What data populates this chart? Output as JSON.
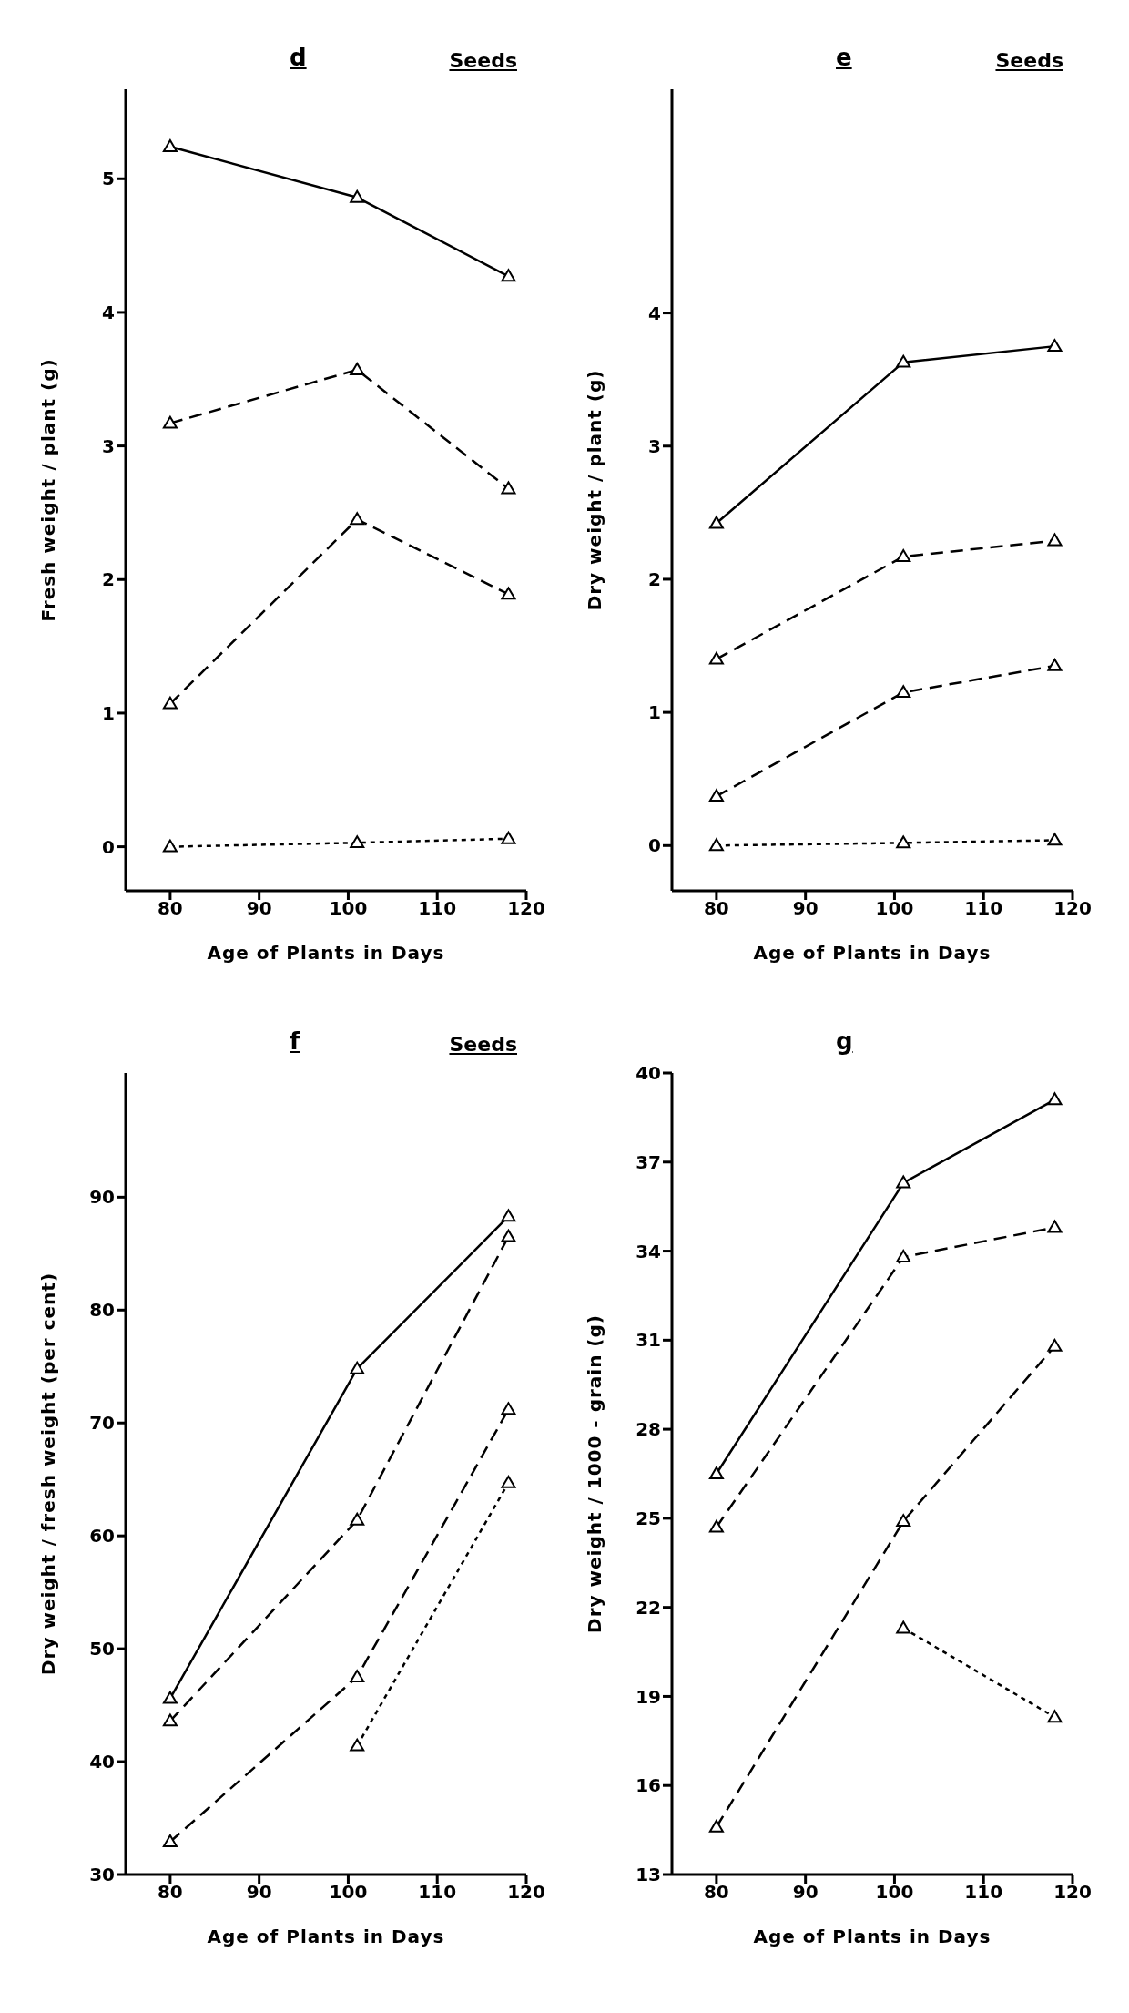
{
  "chart_data": [
    {
      "type": "line",
      "title": "d",
      "xlabel": "Age of Plants in Days",
      "ylabel": "Fresh weight / plant  (g)",
      "annotations": [
        "Seeds"
      ],
      "x": [
        80,
        101,
        118
      ],
      "xlim": [
        75,
        120
      ],
      "xticks": [
        80,
        90,
        100,
        110,
        120
      ],
      "ylim": [
        -0.33,
        5.67
      ],
      "yticks": [
        0,
        1,
        2,
        3,
        4,
        5
      ],
      "grid": false,
      "legend": false,
      "marker": "triangle",
      "series": [
        {
          "color": "#000000",
          "line_style": "solid",
          "values": [
            5.24,
            4.86,
            4.27
          ]
        },
        {
          "color": "#000000",
          "line_style": "dashed",
          "values": [
            3.17,
            3.57,
            2.68
          ]
        },
        {
          "color": "#000000",
          "line_style": "dashed",
          "values": [
            1.07,
            2.45,
            1.89
          ]
        },
        {
          "color": "#000000",
          "line_style": "dotted",
          "values": [
            0,
            0.03,
            0.06
          ]
        }
      ]
    },
    {
      "type": "line",
      "title": "e",
      "xlabel": "Age of Plants in Days",
      "ylabel": "Dry weight / plant  (g)",
      "annotations": [
        "Seeds"
      ],
      "x": [
        80,
        101,
        118
      ],
      "xlim": [
        75,
        120
      ],
      "xticks": [
        80,
        90,
        100,
        110,
        120
      ],
      "ylim": [
        -0.34,
        5.68
      ],
      "yticks": [
        0,
        1,
        2,
        3,
        4
      ],
      "grid": false,
      "legend": false,
      "marker": "triangle",
      "series": [
        {
          "color": "#000000",
          "line_style": "solid",
          "values": [
            2.42,
            3.63,
            3.75
          ]
        },
        {
          "color": "#000000",
          "line_style": "dashed",
          "values": [
            1.4,
            2.17,
            2.29
          ]
        },
        {
          "color": "#000000",
          "line_style": "dashed",
          "values": [
            0.37,
            1.15,
            1.35
          ]
        },
        {
          "color": "#000000",
          "line_style": "dotted",
          "values": [
            0,
            0.02,
            0.04
          ]
        }
      ]
    },
    {
      "type": "line",
      "title": "f",
      "xlabel": "Age of Plants in Days",
      "ylabel": "Dry weight / fresh weight   (per cent)",
      "annotations": [
        "Seeds"
      ],
      "x": [
        80,
        101,
        118
      ],
      "xlim": [
        75,
        120
      ],
      "xticks": [
        80,
        90,
        100,
        110,
        120
      ],
      "ylim": [
        30,
        101
      ],
      "yticks": [
        30,
        40,
        50,
        60,
        70,
        80,
        90
      ],
      "grid": false,
      "legend": false,
      "marker": "triangle",
      "series": [
        {
          "color": "#000000",
          "line_style": "solid",
          "values": [
            45.6,
            74.8,
            88.3
          ]
        },
        {
          "color": "#000000",
          "line_style": "dashed",
          "values": [
            43.6,
            61.4,
            86.5
          ]
        },
        {
          "color": "#000000",
          "line_style": "dashed",
          "values": [
            32.9,
            47.5,
            71.2
          ]
        },
        {
          "color": "#000000",
          "line_style": "dotted",
          "values": [
            null,
            41.4,
            64.7
          ]
        }
      ]
    },
    {
      "type": "line",
      "title": "g",
      "xlabel": "Age of Plants in Days",
      "ylabel": "Dry weight / 1000 - grain  (g)",
      "x": [
        80,
        101,
        118
      ],
      "xlim": [
        75,
        120
      ],
      "xticks": [
        80,
        90,
        100,
        110,
        120
      ],
      "ylim": [
        13,
        40
      ],
      "yticks": [
        13,
        16,
        19,
        22,
        25,
        28,
        31,
        34,
        37,
        40
      ],
      "grid": false,
      "legend": false,
      "marker": "triangle",
      "series": [
        {
          "color": "#000000",
          "line_style": "solid",
          "values": [
            26.5,
            36.3,
            39.1
          ]
        },
        {
          "color": "#000000",
          "line_style": "dashed",
          "values": [
            24.7,
            33.8,
            34.8
          ]
        },
        {
          "color": "#000000",
          "line_style": "dashed",
          "values": [
            14.6,
            24.9,
            30.8
          ]
        },
        {
          "color": "#000000",
          "line_style": "dotted",
          "values": [
            null,
            21.3,
            18.3
          ]
        }
      ]
    }
  ]
}
